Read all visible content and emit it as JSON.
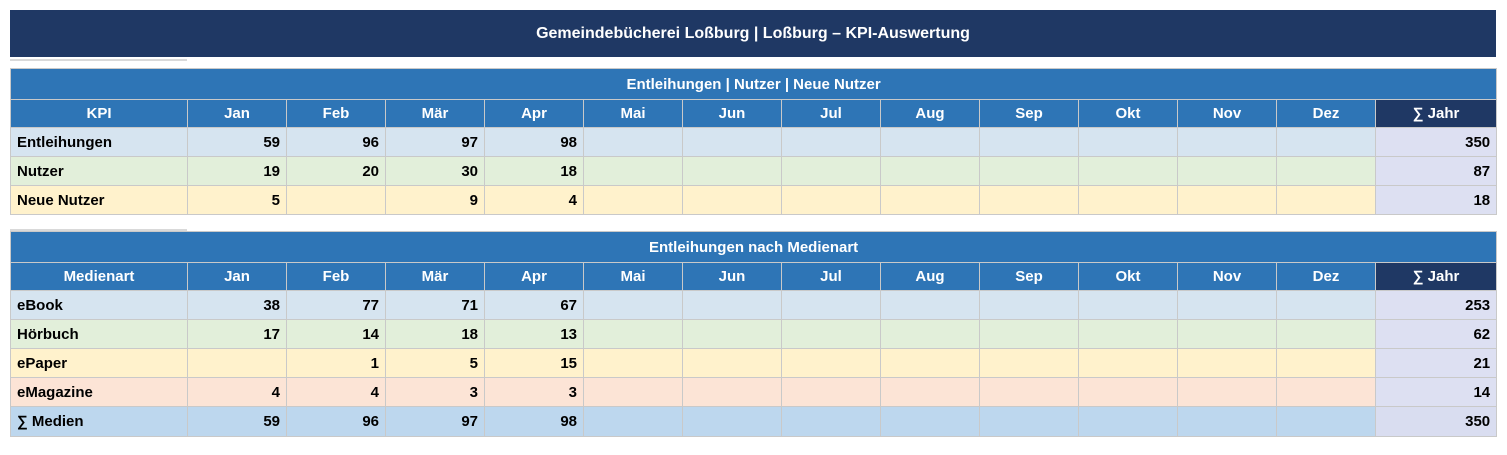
{
  "title": "Gemeindebücherei Loßburg  |  Loßburg – KPI-Auswertung",
  "months": [
    "Jan",
    "Feb",
    "Mär",
    "Apr",
    "Mai",
    "Jun",
    "Jul",
    "Aug",
    "Sep",
    "Okt",
    "Nov",
    "Dez"
  ],
  "sum_label": "∑ Jahr",
  "table1": {
    "section_title": "Entleihungen | Nutzer | Neue Nutzer",
    "first_col_header": "KPI",
    "rows": [
      {
        "label": "Entleihungen",
        "values": [
          "59",
          "96",
          "97",
          "98",
          "",
          "",
          "",
          "",
          "",
          "",
          "",
          ""
        ],
        "total": "350"
      },
      {
        "label": "Nutzer",
        "values": [
          "19",
          "20",
          "30",
          "18",
          "",
          "",
          "",
          "",
          "",
          "",
          "",
          ""
        ],
        "total": "87"
      },
      {
        "label": "Neue Nutzer",
        "values": [
          "5",
          "",
          "9",
          "4",
          "",
          "",
          "",
          "",
          "",
          "",
          "",
          ""
        ],
        "total": "18"
      }
    ]
  },
  "table2": {
    "section_title": "Entleihungen nach Medienart",
    "first_col_header": "Medienart",
    "rows": [
      {
        "label": "eBook",
        "values": [
          "38",
          "77",
          "71",
          "67",
          "",
          "",
          "",
          "",
          "",
          "",
          "",
          ""
        ],
        "total": "253"
      },
      {
        "label": "Hörbuch",
        "values": [
          "17",
          "14",
          "18",
          "13",
          "",
          "",
          "",
          "",
          "",
          "",
          "",
          ""
        ],
        "total": "62"
      },
      {
        "label": "ePaper",
        "values": [
          "",
          "1",
          "5",
          "15",
          "",
          "",
          "",
          "",
          "",
          "",
          "",
          ""
        ],
        "total": "21"
      },
      {
        "label": "eMagazine",
        "values": [
          "4",
          "4",
          "3",
          "3",
          "",
          "",
          "",
          "",
          "",
          "",
          "",
          ""
        ],
        "total": "14"
      },
      {
        "label": "∑ Medien",
        "values": [
          "59",
          "96",
          "97",
          "98",
          "",
          "",
          "",
          "",
          "",
          "",
          "",
          ""
        ],
        "total": "350"
      }
    ]
  },
  "colors": {
    "title_bg": "#1f3864",
    "header_bg": "#2e75b6",
    "sum_header_bg": "#1f3864",
    "row_blue": "#d6e4f0",
    "row_green": "#e2efda",
    "row_yellow": "#fff2cc",
    "row_pink": "#fce4d6",
    "row_total": "#bdd7ee"
  }
}
